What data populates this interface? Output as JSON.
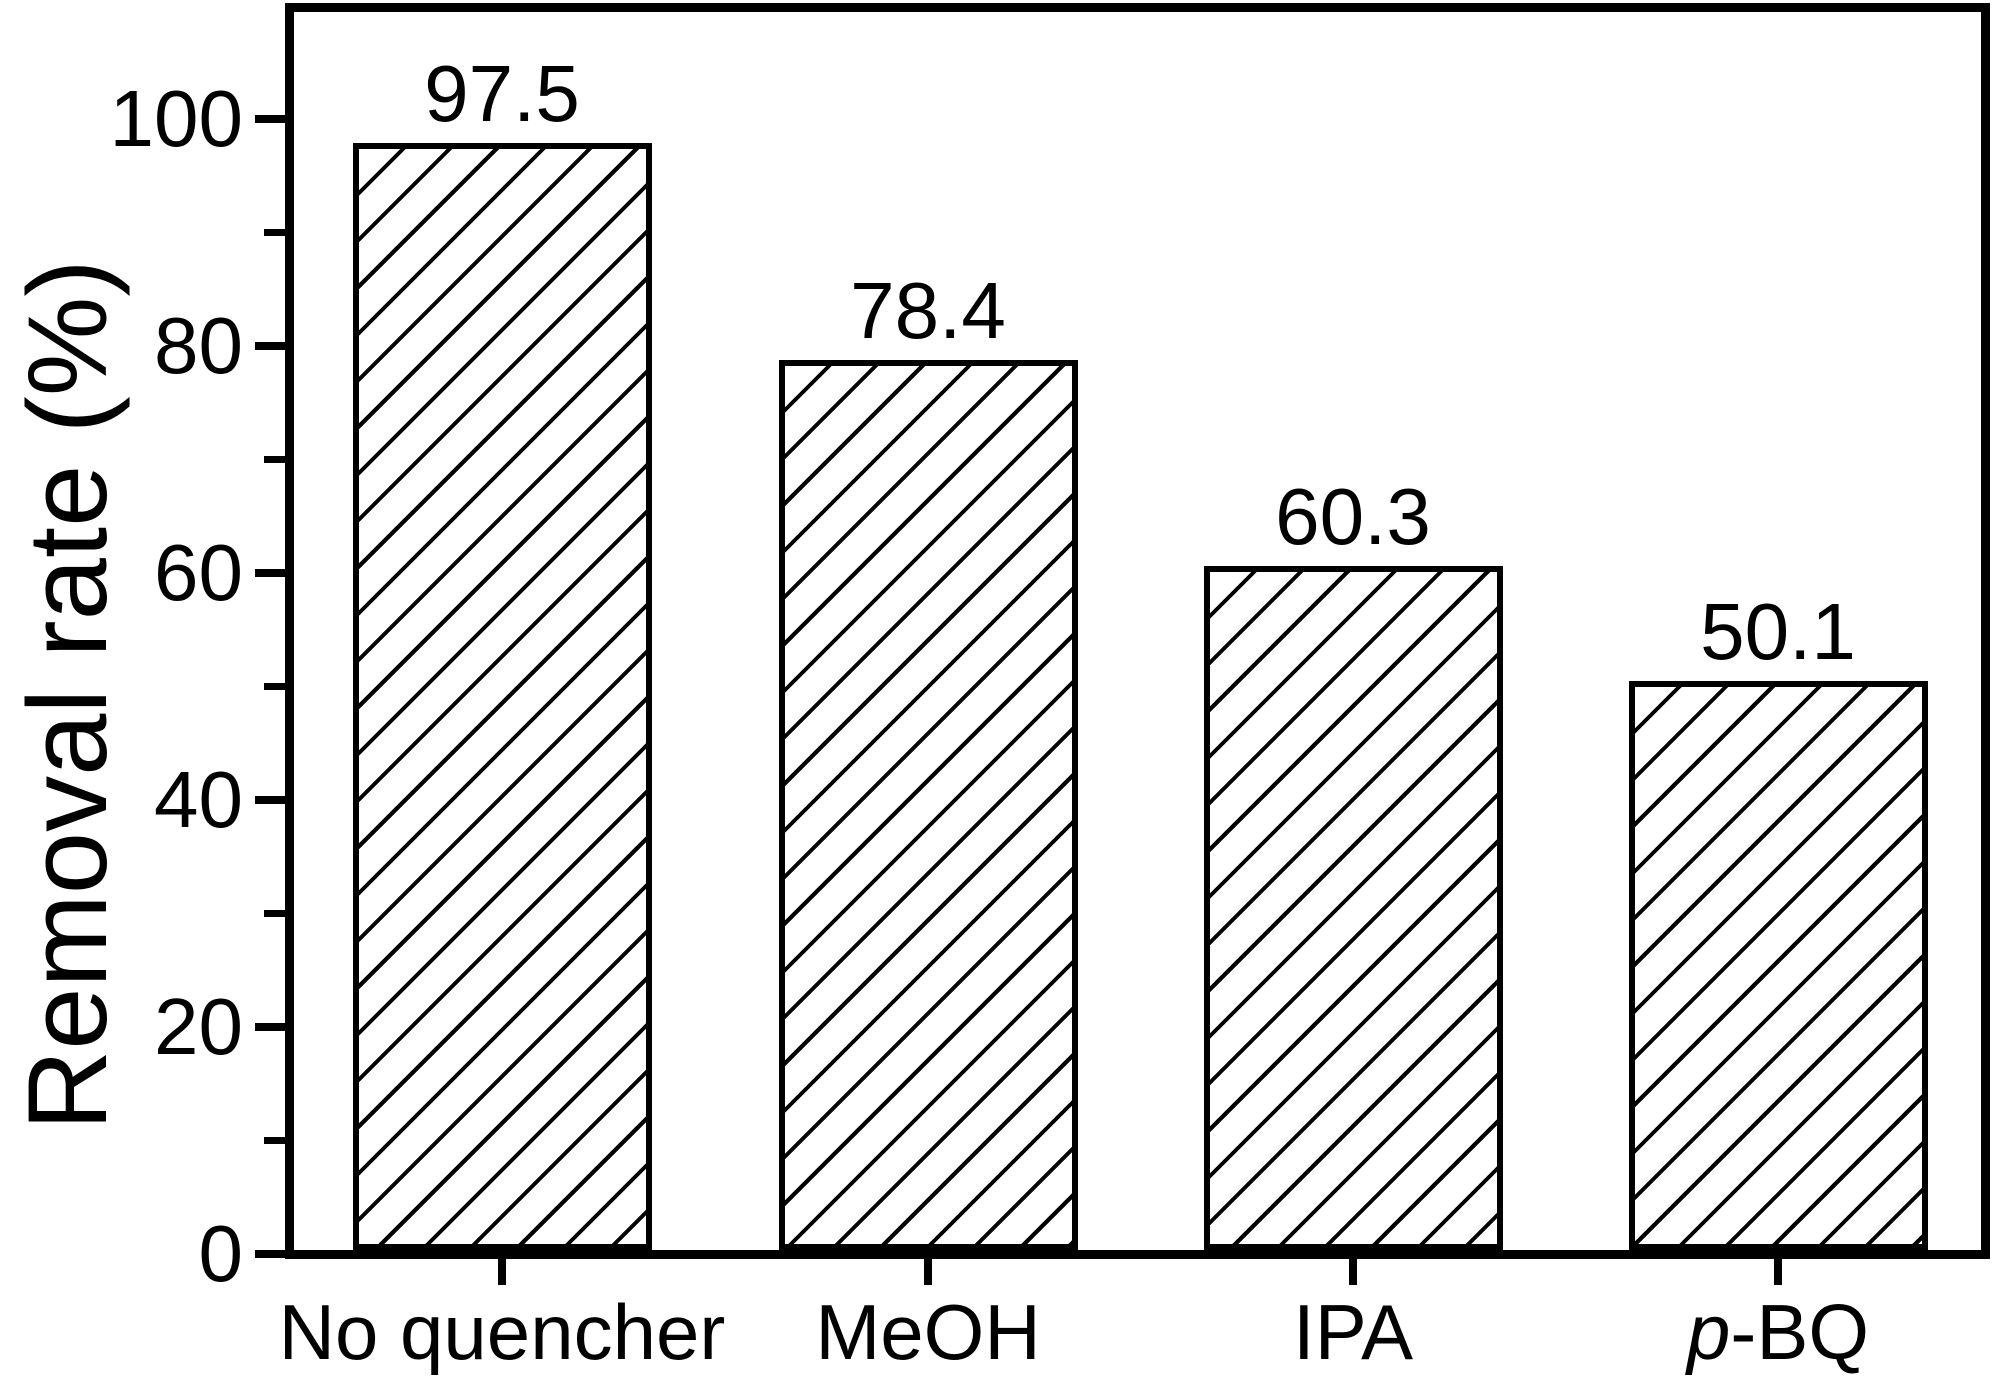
{
  "chart_data": {
    "type": "bar",
    "categories": [
      "No quencher",
      "MeOH",
      "IPA",
      "p-BQ"
    ],
    "values": [
      97.5,
      78.4,
      60.3,
      50.1
    ],
    "bar_value_labels": [
      "97.5",
      "78.4",
      "60.3",
      "50.1"
    ],
    "italic_category_prefixes": {
      "p-BQ": 1
    },
    "title": "",
    "xlabel": "",
    "ylabel": "Removal rate (%)",
    "ylim": [
      0,
      110
    ],
    "yticks_major": [
      0,
      20,
      40,
      60,
      80,
      100
    ],
    "yticks_minor": [
      10,
      30,
      50,
      70,
      90
    ],
    "grid": false,
    "legend": false,
    "bar_style": "white fill with black diagonal hatch (/)",
    "colors": {
      "foreground": "#000000",
      "background": "#ffffff"
    }
  }
}
